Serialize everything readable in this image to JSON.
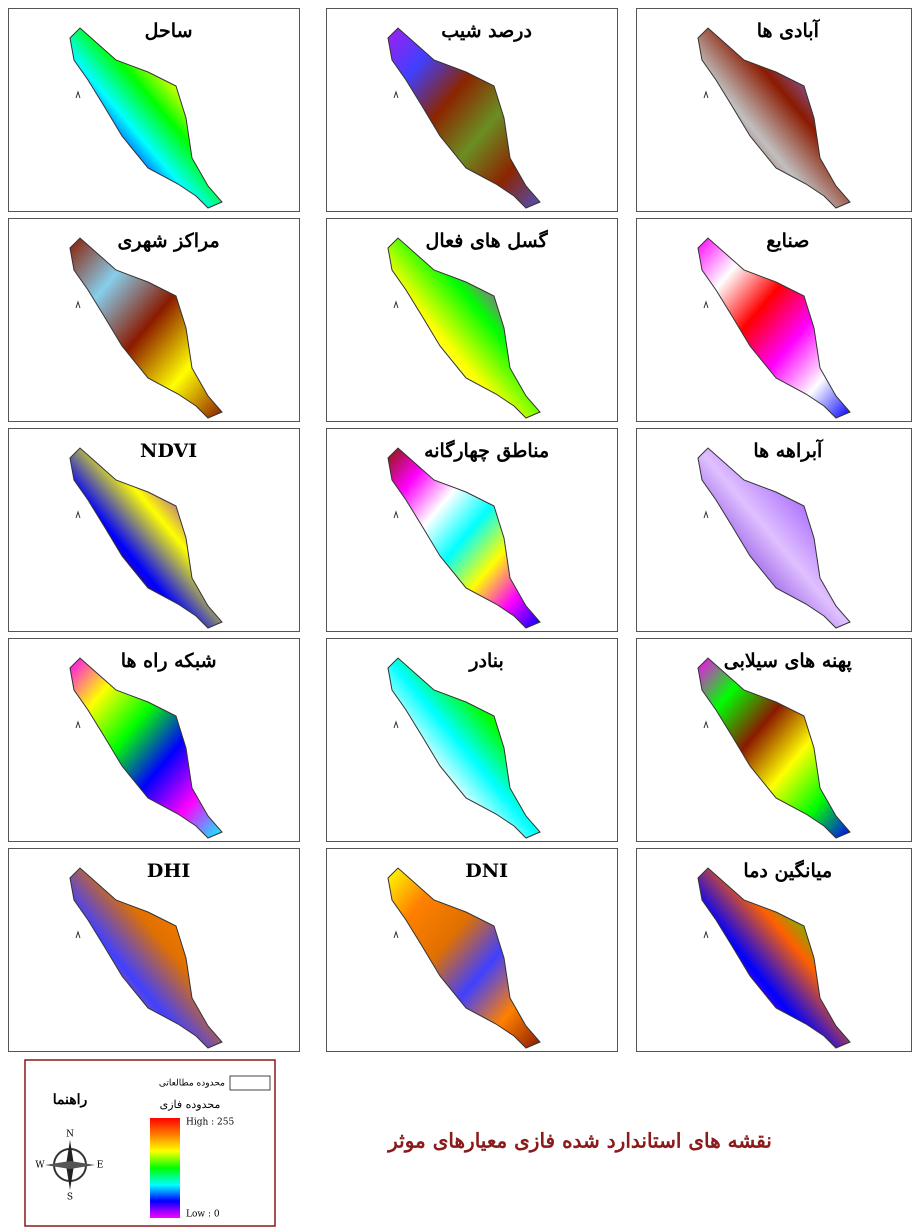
{
  "panels": [
    {
      "title": "ساحل"
    },
    {
      "title": "درصد شیب"
    },
    {
      "title": "آبادی ها"
    },
    {
      "title": "مراکز شهری"
    },
    {
      "title": "گسل های فعال"
    },
    {
      "title": "صنایع"
    },
    {
      "title": "NDVI"
    },
    {
      "title": "مناطق چهارگانه"
    },
    {
      "title": "آبراهه ها"
    },
    {
      "title": "شبکه راه ها"
    },
    {
      "title": "بنادر"
    },
    {
      "title": "پهنه های سیلابی"
    },
    {
      "title": "DHI"
    },
    {
      "title": "DNI"
    },
    {
      "title": "میانگین دما"
    }
  ],
  "legend": {
    "title": "راهنما",
    "study_area": "محدوده مطالعاتی",
    "fuzzy_range": "محدوده فازی",
    "high": "High : 255",
    "low": "Low : 0",
    "compass": {
      "n": "N",
      "s": "S",
      "e": "E",
      "w": "W"
    }
  },
  "caption": "نقشه های استاندارد شده فازی معیارهای موثر"
}
